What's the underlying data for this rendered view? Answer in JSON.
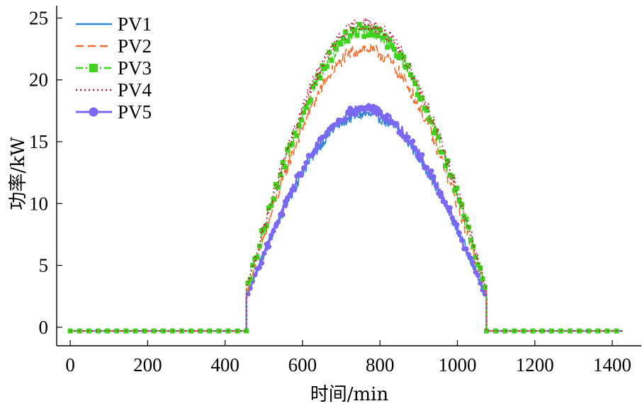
{
  "chart_data": {
    "type": "line",
    "xlabel": "时间/min",
    "ylabel": "功率/kW",
    "xlim": [
      -35,
      1475
    ],
    "ylim": [
      -1.5,
      26
    ],
    "xticks": [
      0,
      200,
      400,
      600,
      800,
      1000,
      1200,
      1400
    ],
    "yticks": [
      0,
      5,
      10,
      15,
      20,
      25
    ],
    "grid": false,
    "legend_position": "top-left",
    "daylight": {
      "start": 455,
      "end": 1075,
      "peak": 760,
      "night_value": -0.3
    },
    "series": [
      {
        "name": "PV1",
        "color": "#2f86d6",
        "style": "solid",
        "marker": "none",
        "edge_value": 2.5,
        "peak": 17.2,
        "noise": 0.45
      },
      {
        "name": "PV2",
        "color": "#f26b2b",
        "style": "dashed",
        "marker": "none",
        "edge_value": 2.7,
        "peak": 22.5,
        "noise": 0.55
      },
      {
        "name": "PV3",
        "color": "#3fd21e",
        "style": "dashdot",
        "marker": "square",
        "edge_value": 3.0,
        "peak": 24.0,
        "noise": 0.55
      },
      {
        "name": "PV4",
        "color": "#c8173d",
        "style": "dotted",
        "marker": "none",
        "edge_value": 3.1,
        "peak": 24.5,
        "noise": 0.6
      },
      {
        "name": "PV5",
        "color": "#7b68f0",
        "style": "solid",
        "marker": "circle",
        "edge_value": 2.4,
        "peak": 17.6,
        "noise": 0.4
      }
    ]
  }
}
